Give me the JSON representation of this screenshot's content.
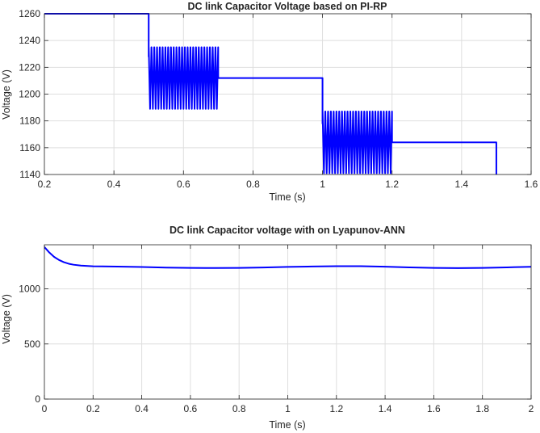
{
  "chart_data": [
    {
      "type": "line",
      "title": "DC link Capacitor Voltage based on PI-RP",
      "xlabel": "Time (s)",
      "ylabel": "Voltage (V)",
      "xlim": [
        0.2,
        1.6
      ],
      "ylim": [
        1140,
        1260
      ],
      "xticks": [
        0.2,
        0.4,
        0.6,
        0.8,
        1,
        1.2,
        1.4,
        1.6
      ],
      "xtick_labels": [
        "0.2",
        "0.4",
        "0.6",
        "0.8",
        "1",
        "1.2",
        "1.4",
        "1.6"
      ],
      "yticks": [
        1140,
        1160,
        1180,
        1200,
        1220,
        1240,
        1260
      ],
      "ytick_labels": [
        "1140",
        "1160",
        "1180",
        "1200",
        "1220",
        "1240",
        "1260"
      ],
      "grid": true,
      "color": "#0000ff",
      "series": [
        {
          "segments": [
            {
              "kind": "line",
              "points": [
                [
                  0.2,
                  1260
                ],
                [
                  0.5,
                  1260
                ],
                [
                  0.5,
                  1228
                ]
              ]
            },
            {
              "kind": "oscillation",
              "t_start": 0.5,
              "t_end": 0.7,
              "cycles": 25,
              "y_min": 1189,
              "y_max": 1235
            },
            {
              "kind": "line",
              "points": [
                [
                  0.7,
                  1212
                ],
                [
                  1.0,
                  1212
                ],
                [
                  1.0,
                  1178
                ]
              ]
            },
            {
              "kind": "oscillation",
              "t_start": 1.0,
              "t_end": 1.2,
              "cycles": 25,
              "y_min": 1141,
              "y_max": 1187
            },
            {
              "kind": "line",
              "points": [
                [
                  1.2,
                  1164
                ],
                [
                  1.5,
                  1164
                ],
                [
                  1.5,
                  1140
                ]
              ]
            }
          ]
        }
      ]
    },
    {
      "type": "line",
      "title": "DC link Capacitor voltage with on Lyapunov-ANN",
      "xlabel": "Time (s)",
      "ylabel": "Voltage (V)",
      "xlim": [
        0,
        2
      ],
      "ylim": [
        0,
        1400
      ],
      "xticks": [
        0,
        0.2,
        0.4,
        0.6,
        0.8,
        1,
        1.2,
        1.4,
        1.6,
        1.8,
        2
      ],
      "xtick_labels": [
        "0",
        "0.2",
        "0.4",
        "0.6",
        "0.8",
        "1",
        "1.2",
        "1.4",
        "1.6",
        "1.8",
        "2"
      ],
      "yticks": [
        0,
        500,
        1000
      ],
      "ytick_labels": [
        "0",
        "500",
        "1000"
      ],
      "grid": true,
      "color": "#0000ff",
      "series": [
        {
          "x": [
            0,
            0.02,
            0.04,
            0.06,
            0.08,
            0.1,
            0.12,
            0.15,
            0.2,
            0.3,
            0.4,
            0.5,
            0.6,
            0.7,
            0.8,
            0.9,
            1.0,
            1.1,
            1.2,
            1.3,
            1.4,
            1.5,
            1.6,
            1.7,
            1.8,
            1.9,
            2.0
          ],
          "y": [
            1380,
            1330,
            1290,
            1262,
            1242,
            1228,
            1219,
            1211,
            1205,
            1202,
            1198,
            1193,
            1190,
            1189,
            1190,
            1194,
            1199,
            1203,
            1206,
            1206,
            1201,
            1195,
            1190,
            1188,
            1190,
            1195,
            1200
          ]
        }
      ]
    }
  ]
}
